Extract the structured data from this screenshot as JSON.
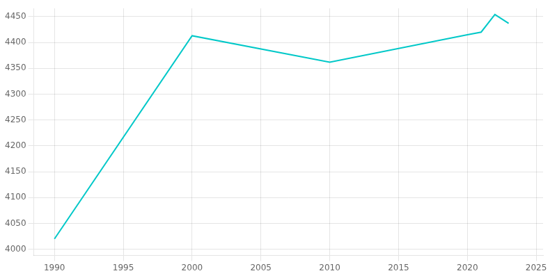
{
  "chart_data": {
    "type": "line",
    "x": [
      1990,
      2000,
      2010,
      2020,
      2021,
      2022,
      2023
    ],
    "values": [
      4020,
      4413,
      4362,
      4415,
      4420,
      4454,
      4437
    ],
    "color": "#00c8c8",
    "xlim": [
      1988.5,
      2025.5
    ],
    "xticks": [
      1990,
      1995,
      2000,
      2005,
      2010,
      2015,
      2020,
      2025
    ],
    "ylim": [
      3988,
      4466
    ],
    "yticks": [
      4000,
      4050,
      4100,
      4150,
      4200,
      4250,
      4300,
      4350,
      4400,
      4450
    ],
    "grid": true
  }
}
